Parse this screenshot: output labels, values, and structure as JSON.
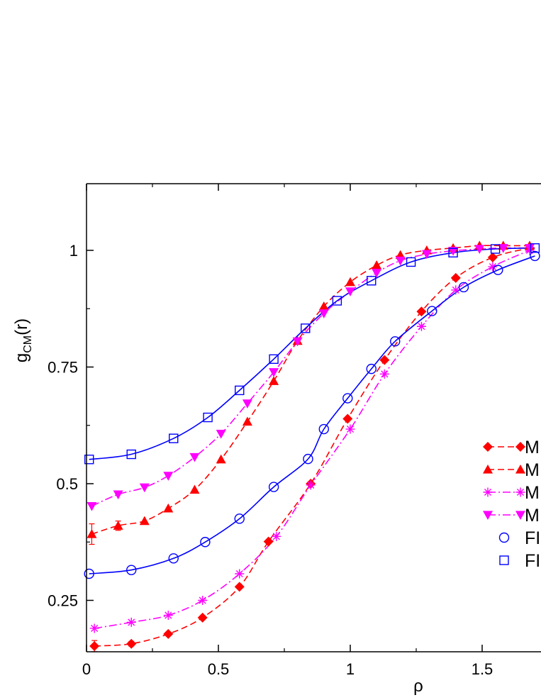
{
  "chart_data": {
    "type": "line",
    "xlabel": "ρ",
    "ylabel_main": "g",
    "ylabel_sub": "CM",
    "ylabel_tail": "(r)",
    "xlim": [
      0,
      1.72
    ],
    "ylim": [
      0.13,
      1.12
    ],
    "x_ticks": [
      0,
      0.5,
      1,
      1.5
    ],
    "x_tick_labels": [
      "0",
      "0.5",
      "1",
      "1.5"
    ],
    "y_ticks": [
      0.25,
      0.5,
      0.75,
      1
    ],
    "y_tick_labels": [
      "0.25",
      "0.5",
      "0.75",
      "1"
    ],
    "legend_position": "right",
    "series": [
      {
        "name": "M",
        "color": "#ff0000",
        "marker": "diamond",
        "line": "dashed",
        "x": [
          0.03,
          0.17,
          0.31,
          0.44,
          0.58,
          0.69,
          0.85,
          0.99,
          1.13,
          1.27,
          1.4,
          1.54,
          1.68
        ],
        "y": [
          0.152,
          0.157,
          0.178,
          0.213,
          0.279,
          0.376,
          0.5,
          0.639,
          0.765,
          0.869,
          0.941,
          0.985,
          1.005
        ],
        "yerr": [
          0.012,
          0.005,
          0,
          0,
          0,
          0,
          0,
          0,
          0,
          0,
          0,
          0,
          0
        ]
      },
      {
        "name": "M",
        "color": "#ff0000",
        "marker": "triangle-up",
        "line": "dashed",
        "x": [
          0.02,
          0.12,
          0.22,
          0.31,
          0.41,
          0.51,
          0.61,
          0.71,
          0.8,
          0.9,
          1.0,
          1.1,
          1.19,
          1.29,
          1.39,
          1.49,
          1.58,
          1.68
        ],
        "y": [
          0.392,
          0.41,
          0.42,
          0.447,
          0.487,
          0.552,
          0.633,
          0.72,
          0.806,
          0.88,
          0.932,
          0.968,
          0.99,
          1.0,
          1.005,
          1.01,
          1.01,
          1.01
        ],
        "yerr": [
          0.022,
          0.01,
          0,
          0,
          0,
          0,
          0,
          0,
          0,
          0,
          0,
          0,
          0,
          0,
          0,
          0,
          0,
          0
        ]
      },
      {
        "name": "M",
        "color": "#ff00ff",
        "marker": "star",
        "line": "dashdot",
        "x": [
          0.03,
          0.17,
          0.31,
          0.44,
          0.58,
          0.72,
          0.85,
          1.0,
          1.13,
          1.27,
          1.4,
          1.54,
          1.68
        ],
        "y": [
          0.19,
          0.203,
          0.218,
          0.25,
          0.307,
          0.387,
          0.497,
          0.617,
          0.735,
          0.837,
          0.915,
          0.965,
          1.0
        ],
        "yerr": [
          0,
          0,
          0,
          0,
          0,
          0,
          0,
          0,
          0,
          0,
          0,
          0,
          0
        ]
      },
      {
        "name": "M",
        "color": "#ff00ff",
        "marker": "triangle-down",
        "line": "dashdot",
        "x": [
          0.02,
          0.12,
          0.22,
          0.31,
          0.41,
          0.51,
          0.61,
          0.71,
          0.8,
          0.9,
          1.0,
          1.1,
          1.19,
          1.29,
          1.39,
          1.49,
          1.58,
          1.68
        ],
        "y": [
          0.452,
          0.477,
          0.492,
          0.517,
          0.557,
          0.607,
          0.672,
          0.739,
          0.805,
          0.865,
          0.912,
          0.952,
          0.978,
          0.992,
          0.999,
          1.003,
          1.005,
          1.005
        ],
        "yerr": [
          0,
          0,
          0,
          0,
          0,
          0,
          0,
          0,
          0,
          0,
          0,
          0,
          0,
          0,
          0,
          0,
          0,
          0
        ]
      },
      {
        "name": "FI",
        "color": "#0000ff",
        "marker": "circle",
        "line": "solid",
        "x": [
          0.01,
          0.17,
          0.33,
          0.45,
          0.58,
          0.71,
          0.84,
          0.9,
          0.99,
          1.08,
          1.17,
          1.31,
          1.43,
          1.56,
          1.7
        ],
        "y": [
          0.307,
          0.315,
          0.34,
          0.375,
          0.425,
          0.493,
          0.553,
          0.617,
          0.683,
          0.746,
          0.805,
          0.87,
          0.921,
          0.958,
          0.988
        ],
        "yerr": [
          0,
          0,
          0,
          0,
          0,
          0,
          0,
          0,
          0,
          0,
          0,
          0,
          0,
          0,
          0
        ]
      },
      {
        "name": "FI",
        "color": "#0000ff",
        "marker": "square",
        "line": "solid",
        "x": [
          0.01,
          0.17,
          0.33,
          0.46,
          0.58,
          0.71,
          0.83,
          0.95,
          1.08,
          1.23,
          1.39,
          1.55,
          1.7
        ],
        "y": [
          0.552,
          0.563,
          0.597,
          0.642,
          0.7,
          0.767,
          0.833,
          0.892,
          0.935,
          0.975,
          0.995,
          1.003,
          1.005
        ],
        "yerr": [
          0,
          0,
          0,
          0,
          0,
          0,
          0,
          0,
          0,
          0,
          0,
          0,
          0
        ]
      }
    ]
  }
}
